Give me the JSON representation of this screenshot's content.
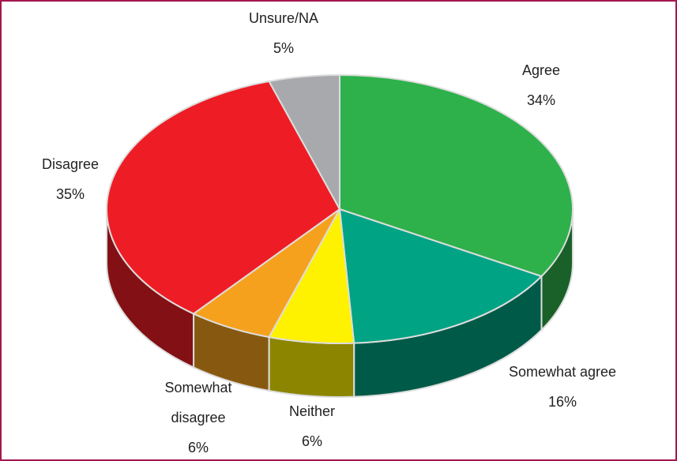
{
  "chart_data": {
    "type": "pie",
    "categories": [
      "Agree",
      "Somewhat agree",
      "Neither",
      "Somewhat disagree",
      "Disagree",
      "Unsure/NA"
    ],
    "values": [
      34,
      16,
      6,
      6,
      35,
      5
    ],
    "value_labels": [
      "34%",
      "16%",
      "6%",
      "6%",
      "35%",
      "5%"
    ],
    "colors": [
      "#2eb14b",
      "#00a383",
      "#fff200",
      "#f6a11d",
      "#ee1d25",
      "#a7a9ac"
    ]
  }
}
